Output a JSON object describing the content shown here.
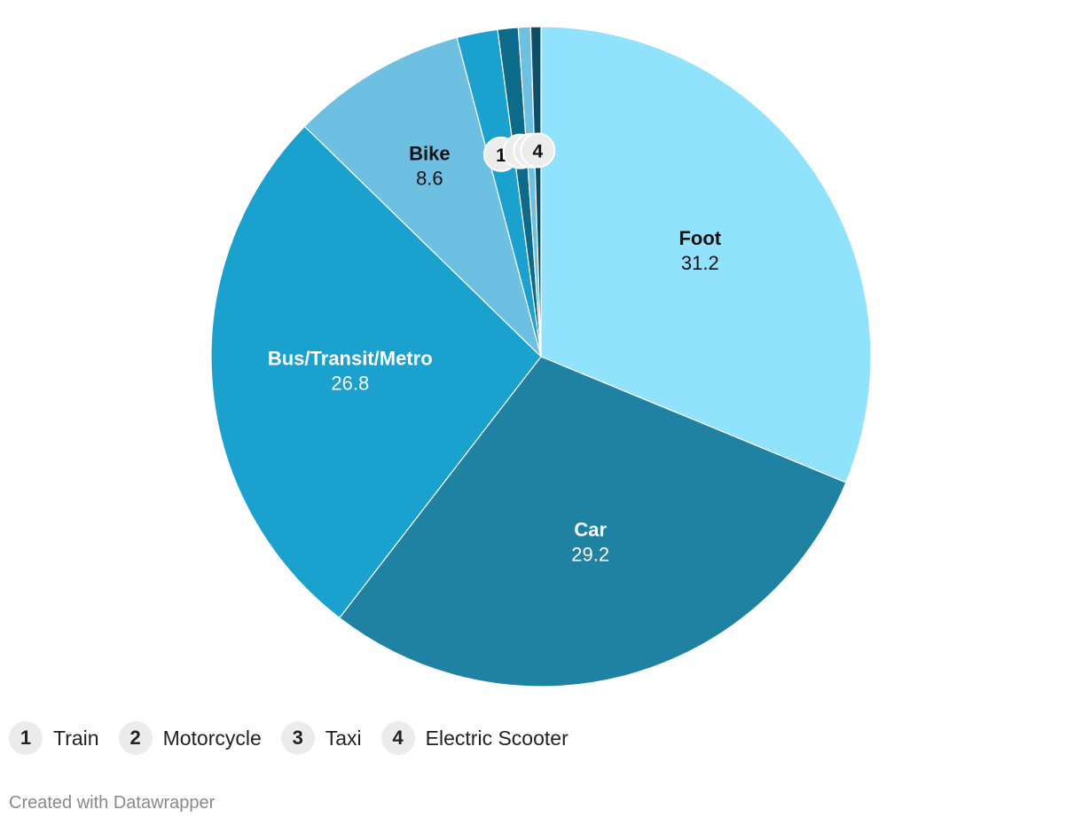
{
  "chart_data": {
    "type": "pie",
    "slices": [
      {
        "label": "Foot",
        "value": 31.2,
        "color": "#91e2fd",
        "label_style": "inside-dark"
      },
      {
        "label": "Car",
        "value": 29.2,
        "color": "#1f82a2",
        "label_style": "inside-light"
      },
      {
        "label": "Bus/Transit/Metro",
        "value": 26.8,
        "color": "#1aa1ce",
        "label_style": "inside-light"
      },
      {
        "label": "Bike",
        "value": 8.6,
        "color": "#6ec0e3",
        "label_style": "inside-dark"
      },
      {
        "label": "Train",
        "value": 2.0,
        "color": "#1aa1ce",
        "badge": "1"
      },
      {
        "label": "Motorcycle",
        "value": 1.0,
        "color": "#0b6b89",
        "badge": "2"
      },
      {
        "label": "Taxi",
        "value": 0.6,
        "color": "#6ec0e3",
        "badge": "3"
      },
      {
        "label": "Electric Scooter",
        "value": 0.5,
        "color": "#0b4f69",
        "badge": "4"
      }
    ]
  },
  "legend": [
    {
      "number": "1",
      "label": "Train"
    },
    {
      "number": "2",
      "label": "Motorcycle"
    },
    {
      "number": "3",
      "label": "Taxi"
    },
    {
      "number": "4",
      "label": "Electric Scooter"
    }
  ],
  "footer": {
    "credit": "Created with Datawrapper"
  }
}
